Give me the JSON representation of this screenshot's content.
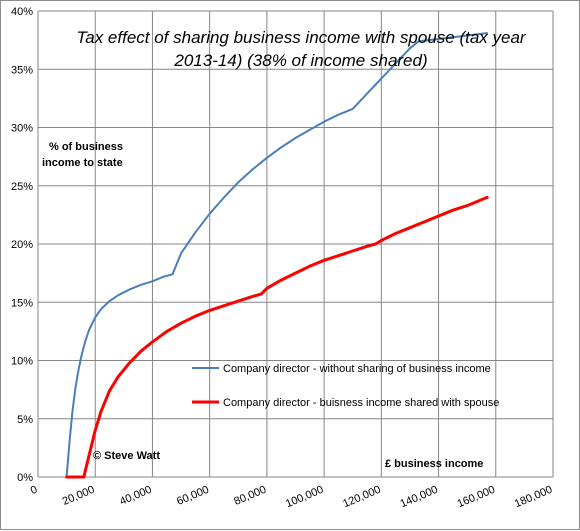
{
  "chart_data": {
    "type": "line",
    "title_lines": [
      "Tax effect of sharing business income with spouse (tax year",
      "2013-14) (38% of income shared)"
    ],
    "xlabel": "£ business income",
    "ylabel_lines": [
      "% of business",
      "income to state"
    ],
    "copyright": "© Steve Watt",
    "xlim": [
      0,
      180000
    ],
    "ylim": [
      0,
      40
    ],
    "x_ticks": [
      0,
      20000,
      40000,
      60000,
      80000,
      100000,
      120000,
      140000,
      160000,
      180000
    ],
    "x_tick_labels": [
      "0",
      "20,000",
      "40,000",
      "60,000",
      "80,000",
      "100,000",
      "120,000",
      "140,000",
      "160,000",
      "180,000"
    ],
    "y_ticks": [
      0,
      5,
      10,
      15,
      20,
      25,
      30,
      35,
      40
    ],
    "y_tick_labels": [
      "0%",
      "5%",
      "10%",
      "15%",
      "20%",
      "25%",
      "30%",
      "35%",
      "40%"
    ],
    "grid": true,
    "legend_placement": "lower-right",
    "series": [
      {
        "name": "Company director - without sharing of business income",
        "color": "#4a7ebb",
        "x": [
          10000,
          11000,
          12000,
          13000,
          14000,
          15000,
          16000,
          17000,
          18000,
          20000,
          22000,
          25000,
          28000,
          32000,
          36000,
          40000,
          44000,
          47000,
          50000,
          55000,
          60000,
          65000,
          70000,
          75000,
          80000,
          85000,
          90000,
          95000,
          100000,
          105000,
          110000,
          115000,
          120000,
          125000,
          130000,
          133000,
          140000,
          150000,
          157000
        ],
        "y": [
          0.0,
          3.0,
          5.5,
          7.5,
          9.0,
          10.2,
          11.2,
          12.0,
          12.7,
          13.7,
          14.4,
          15.1,
          15.6,
          16.1,
          16.5,
          16.8,
          17.2,
          17.4,
          19.2,
          21.0,
          22.6,
          24.0,
          25.3,
          26.4,
          27.4,
          28.3,
          29.1,
          29.8,
          30.5,
          31.1,
          31.6,
          32.9,
          34.2,
          35.5,
          36.8,
          37.4,
          37.6,
          37.9,
          38.1
        ]
      },
      {
        "name": "Company director - buisness income shared with spouse",
        "color": "#ff0000",
        "x": [
          10000,
          16000,
          17000,
          18000,
          20000,
          22000,
          25000,
          28000,
          32000,
          36000,
          40000,
          45000,
          50000,
          55000,
          60000,
          65000,
          70000,
          75000,
          78000,
          80000,
          85000,
          90000,
          95000,
          100000,
          105000,
          110000,
          115000,
          118000,
          120000,
          125000,
          130000,
          135000,
          140000,
          145000,
          150000,
          157000
        ],
        "y": [
          0.0,
          0.0,
          1.0,
          2.0,
          4.0,
          5.6,
          7.4,
          8.6,
          9.8,
          10.8,
          11.6,
          12.5,
          13.2,
          13.8,
          14.3,
          14.7,
          15.1,
          15.5,
          15.7,
          16.2,
          16.9,
          17.5,
          18.1,
          18.6,
          19.0,
          19.4,
          19.8,
          20.0,
          20.3,
          20.9,
          21.4,
          21.9,
          22.4,
          22.9,
          23.3,
          24.0
        ]
      }
    ]
  }
}
